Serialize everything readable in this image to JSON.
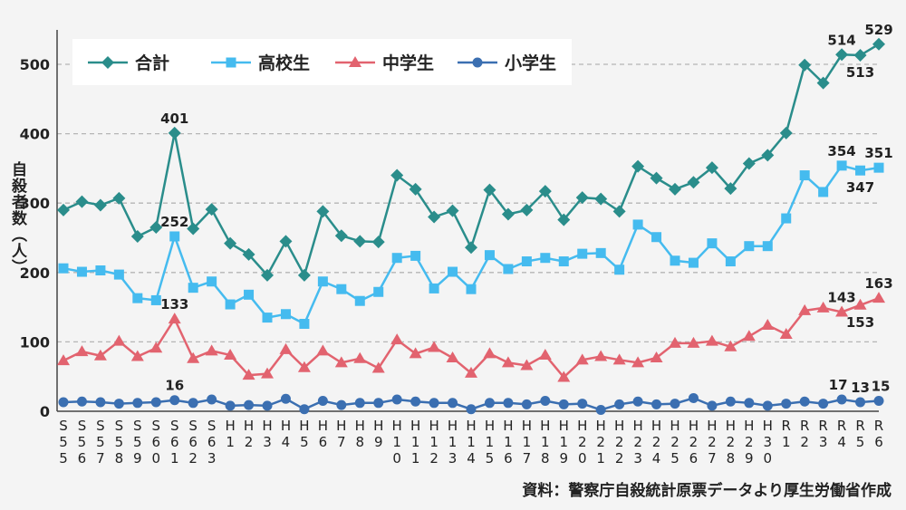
{
  "chart_data": {
    "type": "line",
    "title": "",
    "xlabel": "",
    "ylabel": "自殺者数（人）",
    "ylim": [
      0,
      550
    ],
    "yticks": [
      0,
      100,
      200,
      300,
      400,
      500
    ],
    "grid": true,
    "legend_position": "top-left",
    "categories": [
      "S55",
      "S56",
      "S57",
      "S58",
      "S59",
      "S60",
      "S61",
      "S62",
      "S63",
      "H1",
      "H2",
      "H3",
      "H4",
      "H5",
      "H6",
      "H7",
      "H8",
      "H9",
      "H10",
      "H11",
      "H12",
      "H13",
      "H14",
      "H15",
      "H16",
      "H17",
      "H18",
      "H19",
      "H20",
      "H21",
      "H22",
      "H23",
      "H24",
      "H25",
      "H26",
      "H27",
      "H28",
      "H29",
      "H30",
      "R1",
      "R2",
      "R3",
      "R4",
      "R5",
      "R6"
    ],
    "series": [
      {
        "name": "合計",
        "color": "#2a8d8b",
        "marker": "diamond",
        "values": [
          290,
          302,
          297,
          307,
          252,
          265,
          401,
          263,
          291,
          242,
          226,
          196,
          245,
          196,
          288,
          253,
          245,
          244,
          340,
          320,
          280,
          289,
          236,
          319,
          284,
          290,
          317,
          276,
          308,
          306,
          288,
          353,
          336,
          320,
          330,
          351,
          321,
          357,
          369,
          401,
          499,
          473,
          514,
          513,
          529
        ]
      },
      {
        "name": "高校生",
        "color": "#45bbef",
        "marker": "square",
        "values": [
          206,
          201,
          203,
          197,
          163,
          160,
          252,
          178,
          187,
          154,
          168,
          135,
          140,
          126,
          187,
          176,
          159,
          172,
          221,
          224,
          177,
          201,
          176,
          225,
          205,
          216,
          221,
          216,
          227,
          228,
          204,
          269,
          251,
          217,
          214,
          242,
          216,
          238,
          238,
          278,
          340,
          316,
          354,
          347,
          351
        ]
      },
      {
        "name": "中学生",
        "color": "#e2636f",
        "marker": "triangle",
        "values": [
          73,
          86,
          80,
          101,
          79,
          91,
          133,
          76,
          87,
          81,
          52,
          54,
          89,
          63,
          87,
          70,
          76,
          62,
          103,
          83,
          92,
          77,
          55,
          83,
          70,
          66,
          81,
          49,
          74,
          79,
          74,
          70,
          77,
          98,
          98,
          101,
          93,
          108,
          124,
          111,
          145,
          149,
          143,
          153,
          163
        ]
      },
      {
        "name": "小学生",
        "color": "#3b6fb1",
        "marker": "circle",
        "values": [
          13,
          14,
          13,
          11,
          12,
          13,
          16,
          12,
          17,
          8,
          9,
          8,
          18,
          3,
          15,
          9,
          12,
          12,
          17,
          14,
          12,
          12,
          3,
          12,
          12,
          10,
          15,
          10,
          11,
          2,
          10,
          14,
          10,
          11,
          19,
          8,
          14,
          12,
          8,
          11,
          14,
          11,
          17,
          13,
          15
        ]
      }
    ],
    "annotations": [
      {
        "series": 0,
        "index": 6,
        "text": "401",
        "placement": "above"
      },
      {
        "series": 0,
        "index": 42,
        "text": "514",
        "placement": "above"
      },
      {
        "series": 0,
        "index": 43,
        "text": "513",
        "placement": "below"
      },
      {
        "series": 0,
        "index": 44,
        "text": "529",
        "placement": "above"
      },
      {
        "series": 1,
        "index": 6,
        "text": "252",
        "placement": "above"
      },
      {
        "series": 1,
        "index": 42,
        "text": "354",
        "placement": "above"
      },
      {
        "series": 1,
        "index": 43,
        "text": "347",
        "placement": "below"
      },
      {
        "series": 1,
        "index": 44,
        "text": "351",
        "placement": "above"
      },
      {
        "series": 2,
        "index": 6,
        "text": "133",
        "placement": "above"
      },
      {
        "series": 2,
        "index": 42,
        "text": "143",
        "placement": "above"
      },
      {
        "series": 2,
        "index": 43,
        "text": "153",
        "placement": "below"
      },
      {
        "series": 2,
        "index": 44,
        "text": "163",
        "placement": "above"
      },
      {
        "series": 3,
        "index": 6,
        "text": "16",
        "placement": "above"
      },
      {
        "series": 3,
        "index": 42,
        "text": "17",
        "placement": "above"
      },
      {
        "series": 3,
        "index": 43,
        "text": "13",
        "placement": "above"
      },
      {
        "series": 3,
        "index": 44,
        "text": "15",
        "placement": "above"
      }
    ]
  },
  "source": "資料：警察庁自殺統計原票データより厚生労働省作成"
}
